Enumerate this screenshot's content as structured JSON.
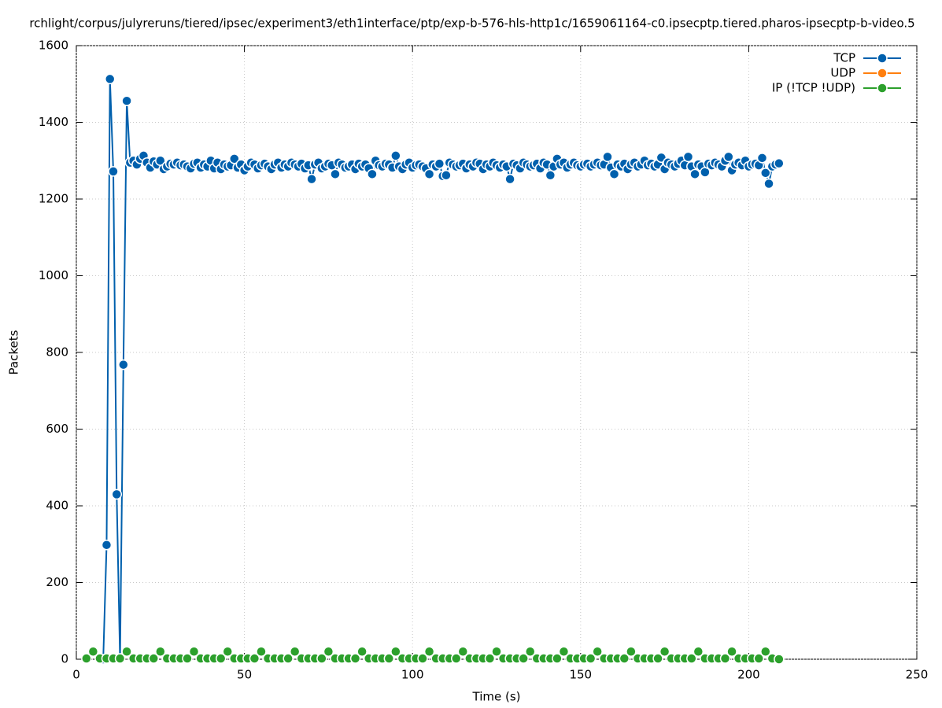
{
  "chart_data": {
    "type": "line",
    "title": "rchlight/corpus/julyreruns/tiered/ipsec/experiment3/eth1interface/ptp/exp-b-576-hls-http1c/1659061164-c0.ipsecptp.tiered.pharos-ipsecptp-b-video.5",
    "x_label": "Time (s)",
    "y_label": "Packets",
    "xlim": [
      0,
      250
    ],
    "xticks": [
      0,
      50,
      100,
      150,
      200,
      250
    ],
    "ylim": [
      0,
      1600
    ],
    "yticks": [
      0,
      200,
      400,
      600,
      800,
      1000,
      1200,
      1400,
      1600
    ],
    "grid": true,
    "legend": "top-right",
    "series": [
      {
        "name": "TCP",
        "color": "#0060ad",
        "x": [
          8,
          9,
          10,
          11,
          12,
          13,
          14,
          15,
          16,
          17,
          18,
          19,
          20,
          21,
          22,
          23,
          24,
          25,
          26,
          27,
          28,
          29,
          30,
          31,
          32,
          33,
          34,
          35,
          36,
          37,
          38,
          39,
          40,
          41,
          42,
          43,
          44,
          45,
          46,
          47,
          48,
          49,
          50,
          51,
          52,
          53,
          54,
          55,
          56,
          57,
          58,
          59,
          60,
          61,
          62,
          63,
          64,
          65,
          66,
          67,
          68,
          69,
          70,
          71,
          72,
          73,
          74,
          75,
          76,
          77,
          78,
          79,
          80,
          81,
          82,
          83,
          84,
          85,
          86,
          87,
          88,
          89,
          90,
          91,
          92,
          93,
          94,
          95,
          96,
          97,
          98,
          99,
          100,
          101,
          102,
          103,
          104,
          105,
          106,
          107,
          108,
          109,
          110,
          111,
          112,
          113,
          114,
          115,
          116,
          117,
          118,
          119,
          120,
          121,
          122,
          123,
          124,
          125,
          126,
          127,
          128,
          129,
          130,
          131,
          132,
          133,
          134,
          135,
          136,
          137,
          138,
          139,
          140,
          141,
          142,
          143,
          144,
          145,
          146,
          147,
          148,
          149,
          150,
          151,
          152,
          153,
          154,
          155,
          156,
          157,
          158,
          159,
          160,
          161,
          162,
          163,
          164,
          165,
          166,
          167,
          168,
          169,
          170,
          171,
          172,
          173,
          174,
          175,
          176,
          177,
          178,
          179,
          180,
          181,
          182,
          183,
          184,
          185,
          186,
          187,
          188,
          189,
          190,
          191,
          192,
          193,
          194,
          195,
          196,
          197,
          198,
          199,
          200,
          201,
          202,
          203,
          204,
          205,
          206,
          207,
          208,
          209
        ],
        "values": [
          0,
          298,
          1513,
          1272,
          430,
          0,
          768,
          1456,
          1295,
          1300,
          1290,
          1305,
          1313,
          1295,
          1282,
          1298,
          1290,
          1300,
          1278,
          1285,
          1292,
          1290,
          1295,
          1288,
          1290,
          1285,
          1280,
          1292,
          1295,
          1282,
          1290,
          1285,
          1300,
          1280,
          1295,
          1278,
          1290,
          1285,
          1288,
          1305,
          1282,
          1290,
          1275,
          1285,
          1295,
          1290,
          1280,
          1288,
          1292,
          1285,
          1278,
          1290,
          1295,
          1282,
          1290,
          1285,
          1295,
          1290,
          1285,
          1292,
          1280,
          1288,
          1252,
          1290,
          1295,
          1280,
          1285,
          1292,
          1288,
          1265,
          1295,
          1290,
          1282,
          1285,
          1290,
          1278,
          1292,
          1285,
          1290,
          1280,
          1265,
          1300,
          1288,
          1285,
          1292,
          1290,
          1282,
          1313,
          1285,
          1278,
          1290,
          1295,
          1282,
          1288,
          1290,
          1285,
          1280,
          1265,
          1290,
          1285,
          1292,
          1260,
          1262,
          1295,
          1290,
          1285,
          1288,
          1292,
          1280,
          1290,
          1285,
          1295,
          1292,
          1278,
          1290,
          1285,
          1295,
          1288,
          1282,
          1290,
          1285,
          1252,
          1292,
          1288,
          1280,
          1295,
          1290,
          1285,
          1288,
          1292,
          1280,
          1295,
          1290,
          1262,
          1285,
          1305,
          1290,
          1295,
          1282,
          1290,
          1295,
          1288,
          1285,
          1290,
          1292,
          1285,
          1290,
          1295,
          1288,
          1290,
          1310,
          1282,
          1265,
          1290,
          1285,
          1292,
          1278,
          1290,
          1295,
          1285,
          1290,
          1300,
          1288,
          1292,
          1285,
          1290,
          1308,
          1278,
          1295,
          1290,
          1285,
          1292,
          1300,
          1288,
          1310,
          1285,
          1265,
          1290,
          1285,
          1270,
          1292,
          1288,
          1295,
          1290,
          1285,
          1300,
          1310,
          1275,
          1290,
          1295,
          1288,
          1300,
          1285,
          1290,
          1292,
          1288,
          1307,
          1268,
          1240,
          1285,
          1290,
          1293
        ]
      },
      {
        "name": "UDP",
        "color": "#ff7f0e",
        "x": [],
        "values": []
      },
      {
        "name": "IP (!TCP  !UDP)",
        "color": "#2ca02c",
        "x": [
          3,
          5,
          7,
          9,
          11,
          13,
          15,
          17,
          19,
          21,
          23,
          25,
          27,
          29,
          31,
          33,
          35,
          37,
          39,
          41,
          43,
          45,
          47,
          49,
          51,
          53,
          55,
          57,
          59,
          61,
          63,
          65,
          67,
          69,
          71,
          73,
          75,
          77,
          79,
          81,
          83,
          85,
          87,
          89,
          91,
          93,
          95,
          97,
          99,
          101,
          103,
          105,
          107,
          109,
          111,
          113,
          115,
          117,
          119,
          121,
          123,
          125,
          127,
          129,
          131,
          133,
          135,
          137,
          139,
          141,
          143,
          145,
          147,
          149,
          151,
          153,
          155,
          157,
          159,
          161,
          163,
          165,
          167,
          169,
          171,
          173,
          175,
          177,
          179,
          181,
          183,
          185,
          187,
          189,
          191,
          193,
          195,
          197,
          199,
          201,
          203,
          205,
          207,
          209
        ],
        "values": [
          2,
          20,
          2,
          2,
          2,
          2,
          20,
          2,
          2,
          2,
          2,
          20,
          2,
          2,
          2,
          2,
          20,
          2,
          2,
          2,
          2,
          20,
          2,
          2,
          2,
          2,
          20,
          2,
          2,
          2,
          2,
          20,
          2,
          2,
          2,
          2,
          20,
          2,
          2,
          2,
          2,
          20,
          2,
          2,
          2,
          2,
          20,
          2,
          2,
          2,
          2,
          20,
          2,
          2,
          2,
          2,
          20,
          2,
          2,
          2,
          2,
          20,
          2,
          2,
          2,
          2,
          20,
          2,
          2,
          2,
          2,
          20,
          2,
          2,
          2,
          2,
          20,
          2,
          2,
          2,
          2,
          20,
          2,
          2,
          2,
          2,
          20,
          2,
          2,
          2,
          2,
          20,
          2,
          2,
          2,
          2,
          20,
          2,
          2,
          2,
          2,
          20,
          2,
          0
        ]
      }
    ]
  }
}
